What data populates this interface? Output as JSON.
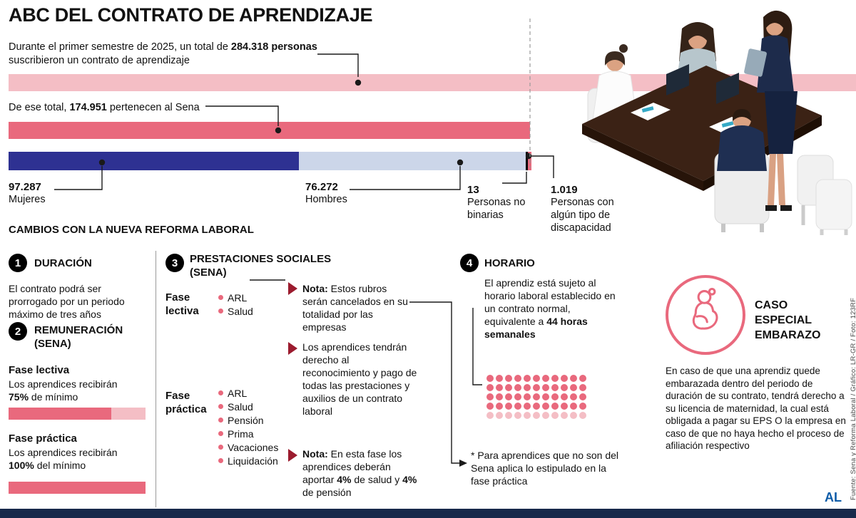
{
  "colors": {
    "pink_light": "#f4bec5",
    "pink_dark": "#e9697d",
    "blue_dark": "#2e3192",
    "lavender": "#ccd6e9",
    "note_red": "#9b1b2e",
    "footer_navy": "#17294a",
    "logo_blue": "#0d5ca8"
  },
  "header": {
    "title": "ABC DEL CONTRATO DE APRENDIZAJE",
    "intro_line1_prefix": "Durante el primer semestre de 2025, un total de ",
    "intro_line1_bold": "284.318 personas",
    "intro_line2": "suscribieron un contrato de aprendizaje",
    "sena_prefix": "De ese total, ",
    "sena_bold": "174.951",
    "sena_suffix": " pertenecen al Sena"
  },
  "demographics": {
    "mujeres_value": "97.287",
    "mujeres_label": "Mujeres",
    "hombres_value": "76.272",
    "hombres_label": "Hombres",
    "nobinarias_value": "13",
    "nobinarias_label": "Personas no binarias",
    "discapacidad_value": "1.019",
    "discapacidad_label": "Personas con algún tipo de discapacidad"
  },
  "chart_data": [
    {
      "type": "bar",
      "title": "Contratos de aprendizaje, primer semestre de 2025",
      "categories": [
        "Total personas",
        "Pertenecen al Sena"
      ],
      "values": [
        284318,
        174951
      ],
      "colors": [
        "#f4bec5",
        "#e9697d"
      ]
    },
    {
      "type": "bar",
      "title": "Distribución de los contratos del Sena",
      "categories": [
        "Mujeres",
        "Hombres",
        "Personas no binarias",
        "Personas con algún tipo de discapacidad"
      ],
      "values": [
        97287,
        76272,
        13,
        1019
      ],
      "colors": [
        "#2e3192",
        "#ccd6e9",
        "#000000",
        "#e9697d"
      ]
    },
    {
      "type": "bar",
      "title": "Remuneración (SENA), % del salario mínimo",
      "categories": [
        "Fase lectiva",
        "Fase práctica"
      ],
      "values": [
        75,
        100
      ],
      "ylim": [
        0,
        100
      ]
    },
    {
      "type": "waffle",
      "title": "Horas semanales del aprendiz",
      "filled": 44,
      "total": 55,
      "unit": "horas semanales"
    }
  ],
  "section_title": "CAMBIOS CON LA NUEVA REFORMA LABORAL",
  "duracion": {
    "number": "1",
    "title": "DURACIÓN",
    "body": "El contrato podrá ser prorrogado por un periodo máximo de tres años"
  },
  "remuneracion": {
    "number": "2",
    "title_line1": "REMUNERACIÓN",
    "title_line2": "(SENA)",
    "lectiva_label": "Fase lectiva",
    "lectiva_text": "Los aprendices recibirán",
    "lectiva_bold": "75%",
    "lectiva_suffix": " de mínimo",
    "practica_label": "Fase práctica",
    "practica_text": "Los aprendices recibirán",
    "practica_bold": "100%",
    "practica_suffix": " del mínimo"
  },
  "prestaciones": {
    "number": "3",
    "title_line1": "PRESTACIONES SOCIALES",
    "title_line2": "(SENA)",
    "fase_lectiva_label": "Fase lectiva",
    "fase_practica_label": "Fase práctica",
    "lectiva_items": [
      "ARL",
      "Salud"
    ],
    "practica_items": [
      "ARL",
      "Salud",
      "Pensión",
      "Prima",
      "Vacaciones",
      "Liquidación"
    ],
    "nota1_bold": "Nota:",
    "nota1_text": " Estos rubros serán cancelados en su totalidad por las empresas",
    "derechos_text": "Los aprendices tendrán derecho al reconocimiento y pago de todas las prestaciones y auxilios de un contrato laboral",
    "nota2_bold": "Nota:",
    "nota2_part1": " En esta fase los aprendices deberán aportar ",
    "nota2_bold2": "4%",
    "nota2_part2": " de salud y ",
    "nota2_bold3": "4%",
    "nota2_part3": " de pensión"
  },
  "horario": {
    "number": "4",
    "title": "HORARIO",
    "body_prefix": "El aprendiz está sujeto al horario laboral establecido en un contrato normal, equivalente a ",
    "body_bold": "44 horas semanales",
    "dots_total": 55,
    "dots_filled": 44,
    "dots_columns": 11,
    "asterisk_note": "* Para aprendices que no son del Sena aplica lo estipulado en la fase práctica"
  },
  "caso_especial": {
    "title_line1": "CASO",
    "title_line2": "ESPECIAL",
    "title_line3": "EMBARAZO",
    "body": "En caso de que una aprendiz quede embarazada dentro del periodo de duración de su contrato, tendrá derecho a su licencia de maternidad, la cual está obligada a pagar su EPS O la empresa en caso de que no haya hecho el proceso de afiliación respectivo"
  },
  "footer": {
    "source": "Fuente: Sena y Reforma Laboral / Gráfico: LR-GR / Foto: 123RF",
    "logo": "AL"
  }
}
